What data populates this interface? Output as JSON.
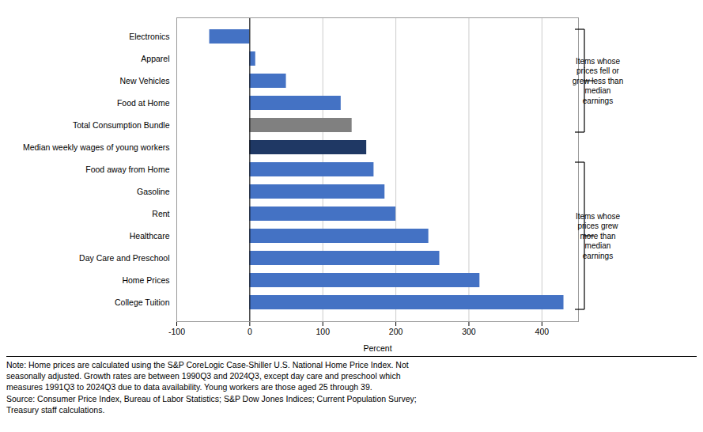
{
  "chart_data": {
    "type": "bar",
    "orientation": "horizontal",
    "categories": [
      "College Tuition",
      "Home Prices",
      "Day Care and Preschool",
      "Healthcare",
      "Rent",
      "Gasoline",
      "Food away from Home",
      "Median weekly wages of young workers",
      "Total Consumption Bundle",
      "Food at Home",
      "New Vehicles",
      "Apparel",
      "Electronics"
    ],
    "values": [
      430,
      315,
      260,
      245,
      200,
      185,
      170,
      160,
      140,
      125,
      50,
      8,
      -55
    ],
    "colors": [
      "#4472C4",
      "#4472C4",
      "#4472C4",
      "#4472C4",
      "#4472C4",
      "#4472C4",
      "#4472C4",
      "#1F3864",
      "#808080",
      "#4472C4",
      "#4472C4",
      "#4472C4",
      "#4472C4"
    ],
    "xlabel": "Percent",
    "xlim": [
      -100,
      450
    ],
    "xticks": [
      -100,
      0,
      100,
      200,
      300,
      400
    ],
    "grid": true,
    "annotations": [
      {
        "text": "Items whose\nprices fell or\ngrew less than\nmedian\nearnings",
        "from": "Total Consumption Bundle",
        "to": "Electronics"
      },
      {
        "text": "Items whose\nprices grew\nmore than\nmedian\nearnings",
        "from": "College Tuition",
        "to": "Food away from Home"
      },
      {
        "text": "Note: Home prices are calculated using the S&P CoreLogic Case-Shiller U.S. National Home Price Index. Not\nseasonally adjusted. Growth rates are between 1990Q3 and 2024Q3, except day care and preschool which\nmeasures 1991Q3 to 2024Q3 due to data availability. Young workers are those aged 25 through 39.\nSource: Consumer Price Index, Bureau of Labor Statistics; S&P Dow Jones Indices; Current Population Survey;\nTreasury staff calculations."
      }
    ]
  }
}
